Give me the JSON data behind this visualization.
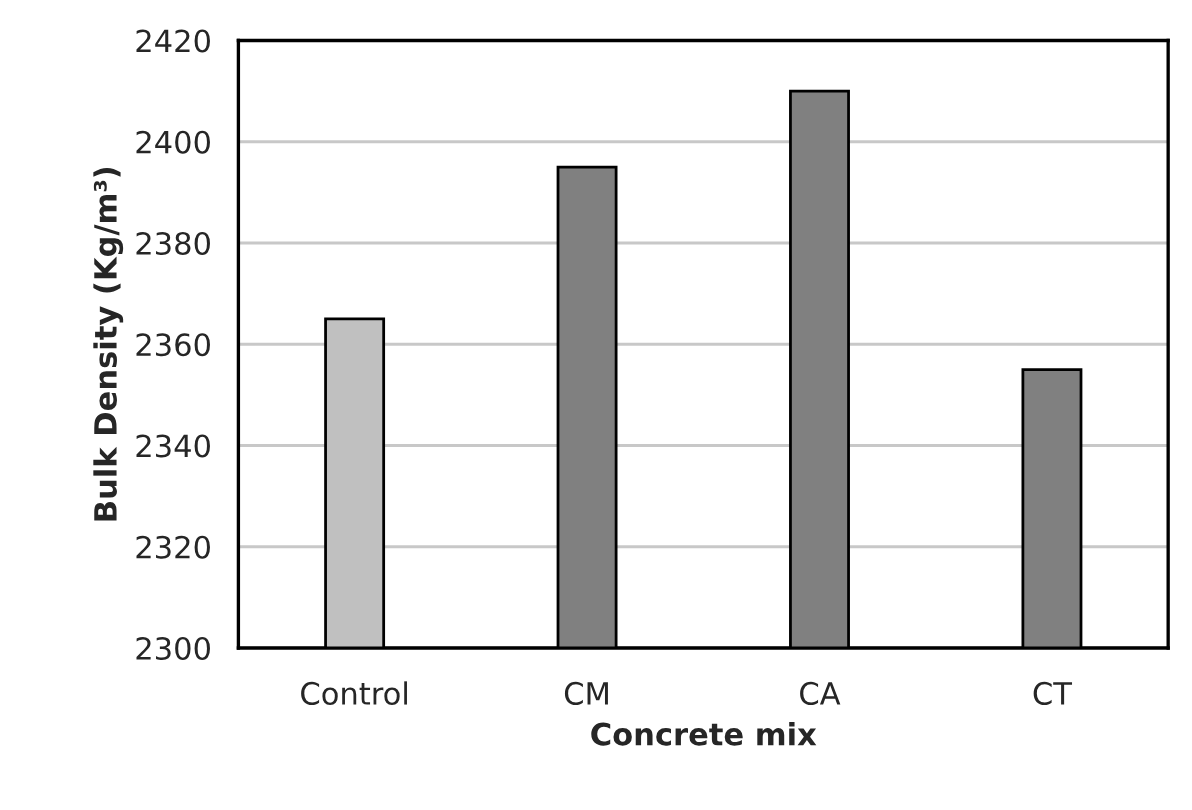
{
  "chart_data": {
    "type": "bar",
    "xlabel": "Concrete mix",
    "ylabel": "Bulk Density (Kg/m³)",
    "categories": [
      "Control",
      "CM",
      "CA",
      "CT"
    ],
    "values": [
      2365,
      2395,
      2410,
      2355
    ],
    "colors": [
      "#c0c0c0",
      "#808080",
      "#808080",
      "#808080"
    ],
    "ylim": [
      2300,
      2420
    ],
    "yticks": [
      2300,
      2320,
      2340,
      2360,
      2380,
      2400,
      2420
    ],
    "grid": "y"
  }
}
